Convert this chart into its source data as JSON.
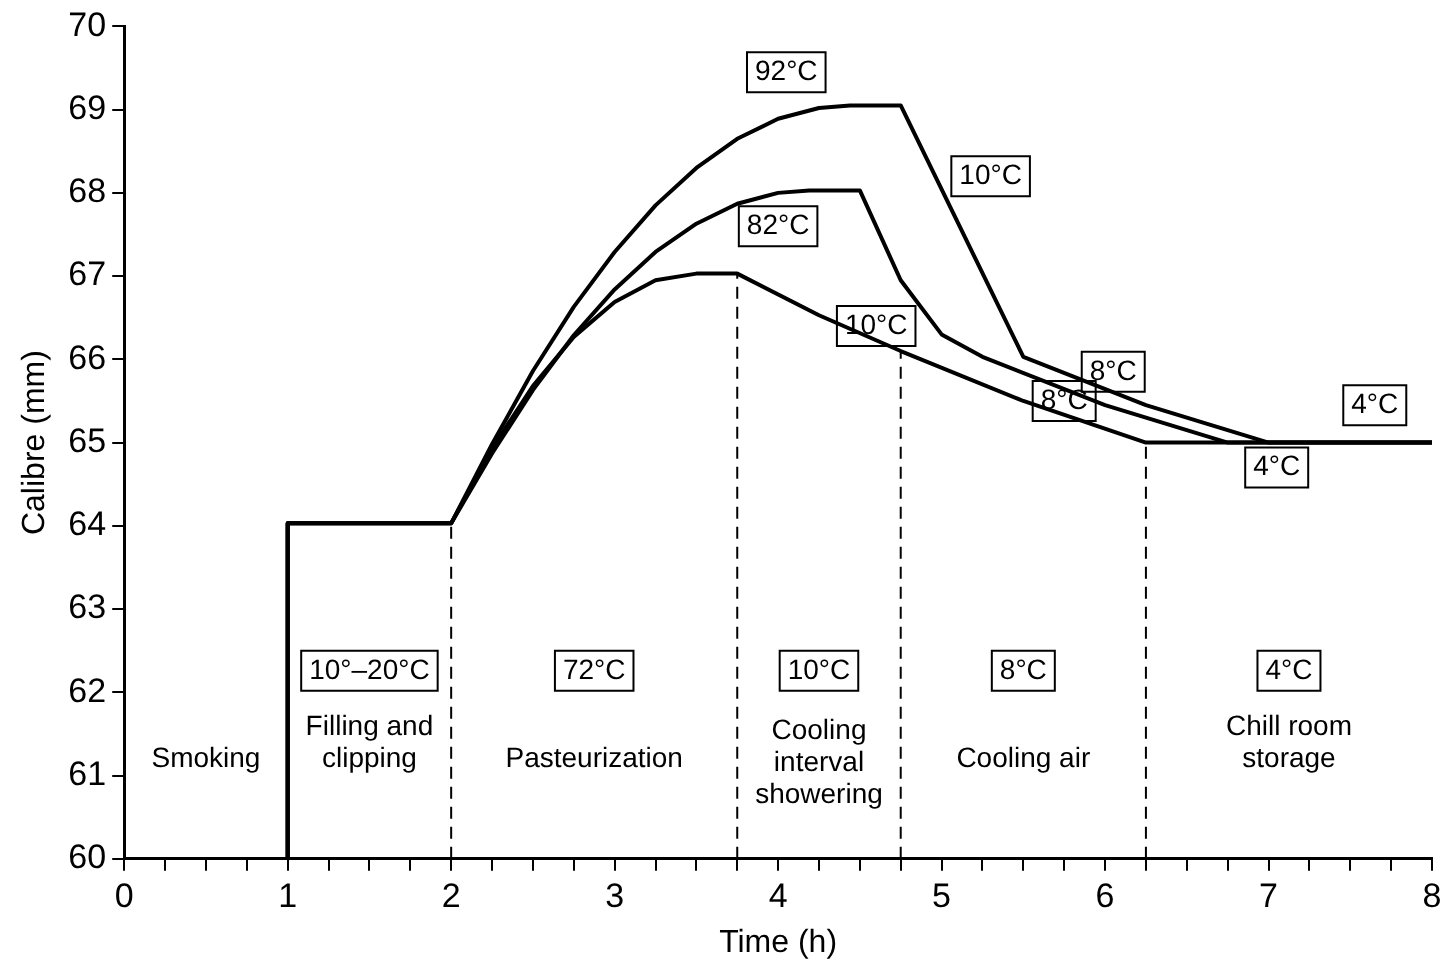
{
  "chart_data": {
    "type": "line",
    "xlabel": "Time (h)",
    "ylabel": "Calibre (mm)",
    "xlim": [
      0,
      8
    ],
    "ylim": [
      60,
      70
    ],
    "xticks": [
      0,
      {
        "value": 0.25,
        "label": null
      },
      {
        "value": 0.5,
        "label": null
      },
      {
        "value": 0.75,
        "label": null
      },
      1,
      {
        "value": 1.25,
        "label": null
      },
      {
        "value": 1.5,
        "label": null
      },
      {
        "value": 1.75,
        "label": null
      },
      2,
      {
        "value": 2.25,
        "label": null
      },
      {
        "value": 2.5,
        "label": null
      },
      {
        "value": 2.75,
        "label": null
      },
      3,
      {
        "value": 3.25,
        "label": null
      },
      {
        "value": 3.5,
        "label": null
      },
      {
        "value": 3.75,
        "label": null
      },
      4,
      {
        "value": 4.25,
        "label": null
      },
      {
        "value": 4.5,
        "label": null
      },
      {
        "value": 4.75,
        "label": null
      },
      5,
      {
        "value": 5.25,
        "label": null
      },
      {
        "value": 5.5,
        "label": null
      },
      {
        "value": 5.75,
        "label": null
      },
      6,
      {
        "value": 6.25,
        "label": null
      },
      {
        "value": 6.5,
        "label": null
      },
      {
        "value": 6.75,
        "label": null
      },
      7,
      {
        "value": 7.25,
        "label": null
      },
      {
        "value": 7.5,
        "label": null
      },
      {
        "value": 7.75,
        "label": null
      },
      8
    ],
    "yticks": [
      60,
      61,
      62,
      63,
      64,
      65,
      66,
      67,
      68,
      69,
      70
    ],
    "grid": false,
    "legend": false,
    "marker": "none",
    "line_style": "solid",
    "series": [
      {
        "color": "#000000",
        "x": [
          1,
          1,
          2,
          2.25,
          2.5,
          2.75,
          3,
          3.25,
          3.5,
          3.75,
          4,
          4.25,
          4.44,
          4.75,
          5.5,
          6.25,
          7,
          8
        ],
        "values": [
          60,
          64.03,
          64.03,
          64.98,
          65.86,
          66.63,
          67.29,
          67.85,
          68.3,
          68.65,
          68.89,
          69.02,
          69.05,
          69.05,
          66.03,
          65.45,
          65,
          65
        ]
      },
      {
        "color": "#000000",
        "x": [
          1,
          1,
          2,
          2.25,
          2.5,
          2.75,
          3,
          3.25,
          3.5,
          3.75,
          4,
          4.19,
          4.5,
          4.75,
          5,
          5.25,
          6,
          6.75,
          8
        ],
        "values": [
          60,
          64.03,
          64.03,
          64.87,
          65.63,
          66.29,
          66.84,
          67.29,
          67.63,
          67.87,
          68,
          68.03,
          68.03,
          66.95,
          66.3,
          66.03,
          65.45,
          65,
          65
        ]
      },
      {
        "color": "#000000",
        "x": [
          1,
          1,
          2,
          2.25,
          2.5,
          2.75,
          3,
          3.25,
          3.5,
          3.75,
          4.25,
          4.75,
          5.5,
          6.25,
          8
        ],
        "values": [
          60,
          64.03,
          64.03,
          64.93,
          65.68,
          66.27,
          66.69,
          66.95,
          67.03,
          67.03,
          66.53,
          66.1,
          65.5,
          65,
          65
        ]
      }
    ],
    "ref_lines": [
      {
        "axis": "x",
        "value": 2,
        "line_style": "dashed"
      },
      {
        "axis": "x",
        "value": 3.75,
        "line_style": "dashed"
      },
      {
        "axis": "x",
        "value": 4.75,
        "line_style": "dashed"
      },
      {
        "axis": "x",
        "value": 6.25,
        "line_style": "dashed"
      }
    ],
    "annotations": [
      {
        "text": "92°C",
        "x": 4.05,
        "y": 69.45
      },
      {
        "text": "82°C",
        "x": 4.0,
        "y": 67.6
      },
      {
        "text": "10°C",
        "x": 5.3,
        "y": 68.2
      },
      {
        "text": "10°C",
        "x": 4.6,
        "y": 66.4
      },
      {
        "text": "8°C",
        "x": 6.05,
        "y": 65.85
      },
      {
        "text": "8°C",
        "x": 5.75,
        "y": 65.5
      },
      {
        "text": "4°C",
        "x": 7.65,
        "y": 65.45
      },
      {
        "text": "4°C",
        "x": 7.05,
        "y": 64.7
      },
      "Smoking",
      "Filling and\nclipping",
      "Pasteurization",
      "Cooling\ninterval\nshowering",
      "Cooling air",
      "Chill room\nstorage",
      "10°–20°C",
      "72°C",
      "10°C",
      "8°C",
      "4°C"
    ]
  }
}
